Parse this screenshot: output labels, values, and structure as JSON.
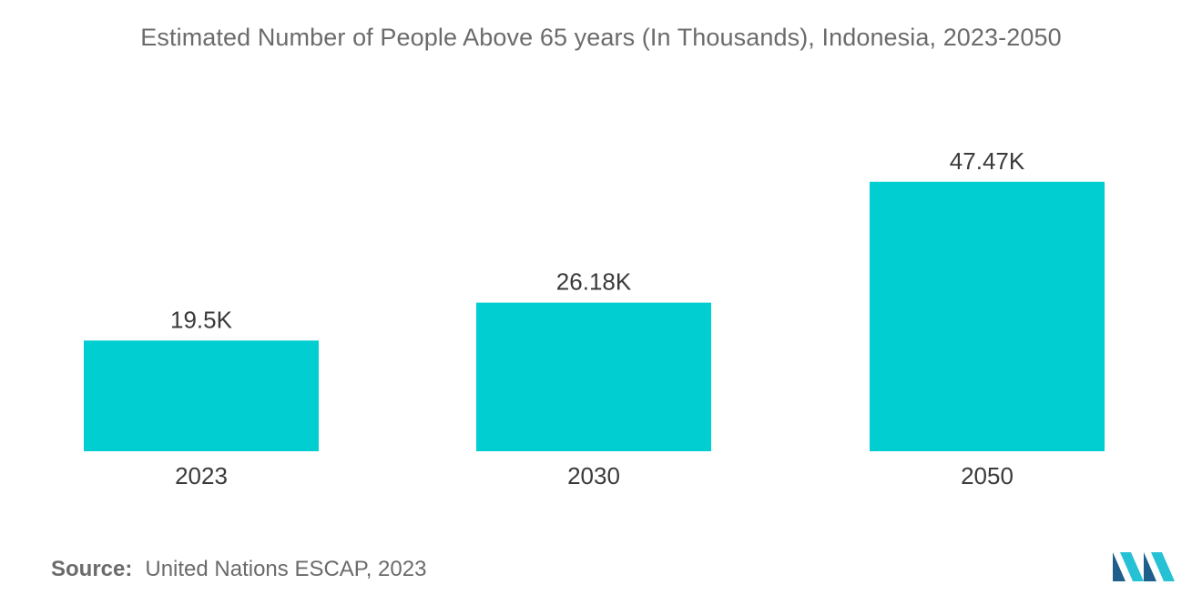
{
  "chart_data": {
    "type": "bar",
    "title": "Estimated Number of People Above 65 years (In Thousands), Indonesia, 2023-2050",
    "categories": [
      "2023",
      "2030",
      "2050"
    ],
    "values": [
      19.5,
      26.18,
      47.47
    ],
    "data_labels": [
      "19.5K",
      "26.18K",
      "47.47K"
    ],
    "xlabel": "",
    "ylabel": "",
    "ylim": [
      0,
      50
    ],
    "grid": false,
    "legend": "none",
    "bar_color": "#00ced1"
  },
  "footer": {
    "source_label": "Source:",
    "source_text": "United Nations ESCAP, 2023"
  },
  "brand": {
    "logo_icon": "mordor-intelligence-logo-icon",
    "logo_color_dark": "#1f5f8b",
    "logo_color_light": "#27c1d6"
  }
}
